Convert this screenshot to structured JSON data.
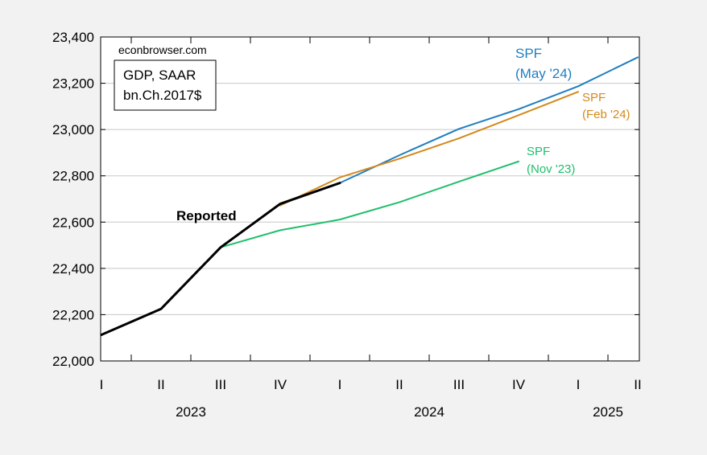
{
  "watermark": "econbrowser.com",
  "legend_box": {
    "line1": "GDP, SAAR",
    "line2": "bn.Ch.2017$"
  },
  "annotations": {
    "reported": "Reported",
    "may24": [
      "SPF",
      "(May '24)"
    ],
    "feb24": [
      "SPF",
      "(Feb '24)"
    ],
    "nov23": [
      "SPF",
      "(Nov '23)"
    ]
  },
  "chart_data": {
    "type": "line",
    "title": "",
    "xlabel": "",
    "ylabel": "",
    "ylim": [
      22000,
      23400
    ],
    "yticks": [
      22000,
      22200,
      22400,
      22600,
      22800,
      23000,
      23200,
      23400
    ],
    "ytick_labels": [
      "22,000",
      "22,200",
      "22,400",
      "22,600",
      "22,800",
      "23,000",
      "23,200",
      "23,400"
    ],
    "x": [
      "2023Q1",
      "2023Q2",
      "2023Q3",
      "2023Q4",
      "2024Q1",
      "2024Q2",
      "2024Q3",
      "2024Q4",
      "2025Q1",
      "2025Q2"
    ],
    "x_tick_labels": [
      "I",
      "II",
      "III",
      "IV",
      "I",
      "II",
      "III",
      "IV",
      "I",
      "II"
    ],
    "year_labels": [
      {
        "label": "2023",
        "at": "2023Q2.5"
      },
      {
        "label": "2024",
        "at": "2024Q2.5"
      },
      {
        "label": "2025",
        "at": "2025Q1.5"
      }
    ],
    "grid": true,
    "series": [
      {
        "name": "Reported",
        "color": "#000000",
        "x": [
          "2023Q1",
          "2023Q2",
          "2023Q3",
          "2023Q4",
          "2024Q1"
        ],
        "values": [
          22113,
          22225,
          22491,
          22679,
          22769
        ]
      },
      {
        "name": "SPF (May '24)",
        "color": "#1f7fbf",
        "x": [
          "2024Q1",
          "2024Q2",
          "2024Q3",
          "2024Q4",
          "2025Q1",
          "2025Q2"
        ],
        "values": [
          22769,
          22889,
          23003,
          23088,
          23187,
          23312
        ]
      },
      {
        "name": "SPF (Feb '24)",
        "color": "#d4891b",
        "x": [
          "2023Q4",
          "2024Q1",
          "2024Q2",
          "2024Q3",
          "2024Q4",
          "2025Q1"
        ],
        "values": [
          22672,
          22793,
          22874,
          22962,
          23062,
          23163
        ]
      },
      {
        "name": "SPF (Nov '23)",
        "color": "#1fbf6b",
        "x": [
          "2023Q3",
          "2023Q4",
          "2024Q1",
          "2024Q2",
          "2024Q3",
          "2024Q4"
        ],
        "values": [
          22491,
          22565,
          22611,
          22686,
          22775,
          22862
        ]
      }
    ]
  }
}
